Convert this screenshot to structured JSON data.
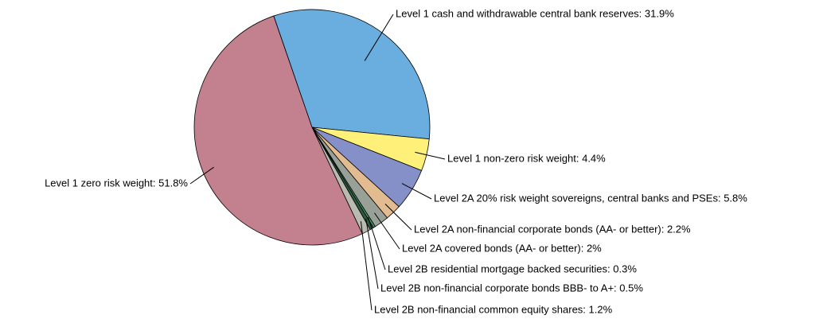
{
  "chart_data": {
    "type": "pie",
    "values": [
      31.9,
      4.4,
      5.8,
      2.2,
      2,
      0.3,
      0.5,
      1.2,
      51.8
    ],
    "value_labels": [
      "Level 1 cash and withdrawable central bank reserves: 31.9%",
      "Level 1 non-zero risk weight: 4.4%",
      "Level 2A 20% risk weight sovereigns, central banks and PSEs: 5.8%",
      "Level 2A non-financial corporate bonds (AA- or better): 2.2%",
      "Level 2A covered bonds (AA- or better): 2%",
      "Level 2B residential mortgage backed securities: 0.3%",
      "Level 2B non-financial corporate bonds BBB- to A+: 0.5%",
      "Level 2B non-financial common equity shares: 1.2%",
      "Level 1 zero risk weight: 51.8%"
    ],
    "colors": [
      "#6aaee0",
      "#fff07a",
      "#8690c8",
      "#e2bb90",
      "#98a098",
      "#3f8f60",
      "#2d5a42",
      "#b9bbb2",
      "#c3808e"
    ]
  }
}
